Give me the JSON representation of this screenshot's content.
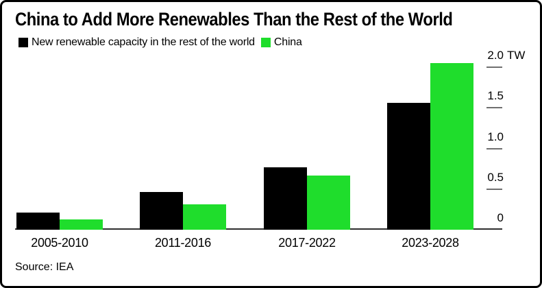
{
  "source": "Source: IEA",
  "chart_data": {
    "type": "bar",
    "title": "China to Add More Renewables Than the Rest of the World",
    "categories": [
      "2005-2010",
      "2011-2016",
      "2017-2022",
      "2023-2028"
    ],
    "series": [
      {
        "name": "New renewable capacity in the rest of the world",
        "key": "rest-of-world",
        "color": "#000000",
        "values": [
          0.21,
          0.46,
          0.77,
          1.56
        ]
      },
      {
        "name": "China",
        "key": "china",
        "color": "#1fdd2c",
        "values": [
          0.13,
          0.31,
          0.67,
          2.05
        ]
      }
    ],
    "unit": "TW",
    "yticks": [
      0,
      0.5,
      1.0,
      1.5,
      2.0
    ],
    "ytick_labels": [
      "0",
      "0.5",
      "1.0",
      "1.5",
      "2.0 TW"
    ],
    "ylim": [
      0,
      2.1
    ],
    "axis_side": "right",
    "legend_position": "top-left",
    "grid": false
  }
}
